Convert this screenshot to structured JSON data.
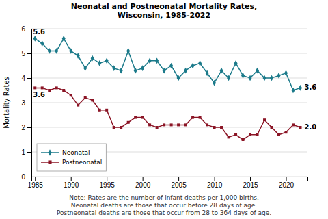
{
  "chart_data": {
    "type": "line",
    "title": "Neonatal and Postneonatal Mortality Rates,\nWisconsin, 1985-2022",
    "ylabel": "Mortality Rates",
    "note": "Note: Rates are the number of infant deaths per 1,000 births.\nNeonatal deaths are those that occur before 28 days of age.\nPostneonatal deaths are those that occur from 28 to 364 days of age.",
    "x": [
      1985,
      1986,
      1987,
      1988,
      1989,
      1990,
      1991,
      1992,
      1993,
      1994,
      1995,
      1996,
      1997,
      1998,
      1999,
      2000,
      2001,
      2002,
      2003,
      2004,
      2005,
      2006,
      2007,
      2008,
      2009,
      2010,
      2011,
      2012,
      2013,
      2014,
      2015,
      2016,
      2017,
      2018,
      2019,
      2020,
      2021,
      2022
    ],
    "series": [
      {
        "name": "Neonatal",
        "color": "#1B7A8A",
        "marker": "diamond",
        "values": [
          5.6,
          5.4,
          5.1,
          5.1,
          5.6,
          5.1,
          4.9,
          4.4,
          4.8,
          4.6,
          4.7,
          4.4,
          4.3,
          5.1,
          4.3,
          4.4,
          4.7,
          4.7,
          4.3,
          4.5,
          4.0,
          4.3,
          4.5,
          4.6,
          4.2,
          3.8,
          4.3,
          4.0,
          4.6,
          4.1,
          4.0,
          4.3,
          4.0,
          4.0,
          4.1,
          4.2,
          3.5,
          3.6
        ]
      },
      {
        "name": "Postneonatal",
        "color": "#8B1425",
        "marker": "square",
        "values": [
          3.6,
          3.6,
          3.5,
          3.6,
          3.5,
          3.3,
          2.9,
          3.2,
          3.1,
          2.7,
          2.7,
          2.0,
          2.0,
          2.2,
          2.4,
          2.4,
          2.1,
          2.0,
          2.1,
          2.1,
          2.1,
          2.1,
          2.4,
          2.4,
          2.1,
          2.0,
          2.0,
          1.6,
          1.7,
          1.5,
          1.7,
          1.7,
          2.3,
          2.0,
          1.7,
          1.8,
          2.1,
          2.0
        ]
      }
    ],
    "xlim": [
      1984.5,
      2023
    ],
    "xticks": [
      1985,
      1990,
      1995,
      2000,
      2005,
      2010,
      2015,
      2020
    ],
    "ylim": [
      0,
      6
    ],
    "yticks": [
      0,
      1,
      2,
      3,
      4,
      5,
      6
    ],
    "grid": "y",
    "legend": "lower left",
    "annotations": [
      {
        "text": "5.6",
        "x": 1985,
        "y": 5.6
      },
      {
        "text": "3.6",
        "x": 2022,
        "y": 3.6
      },
      {
        "text": "3.6",
        "x": 1985,
        "y": 3.6
      },
      {
        "text": "2.0",
        "x": 2022,
        "y": 2.0
      }
    ]
  }
}
